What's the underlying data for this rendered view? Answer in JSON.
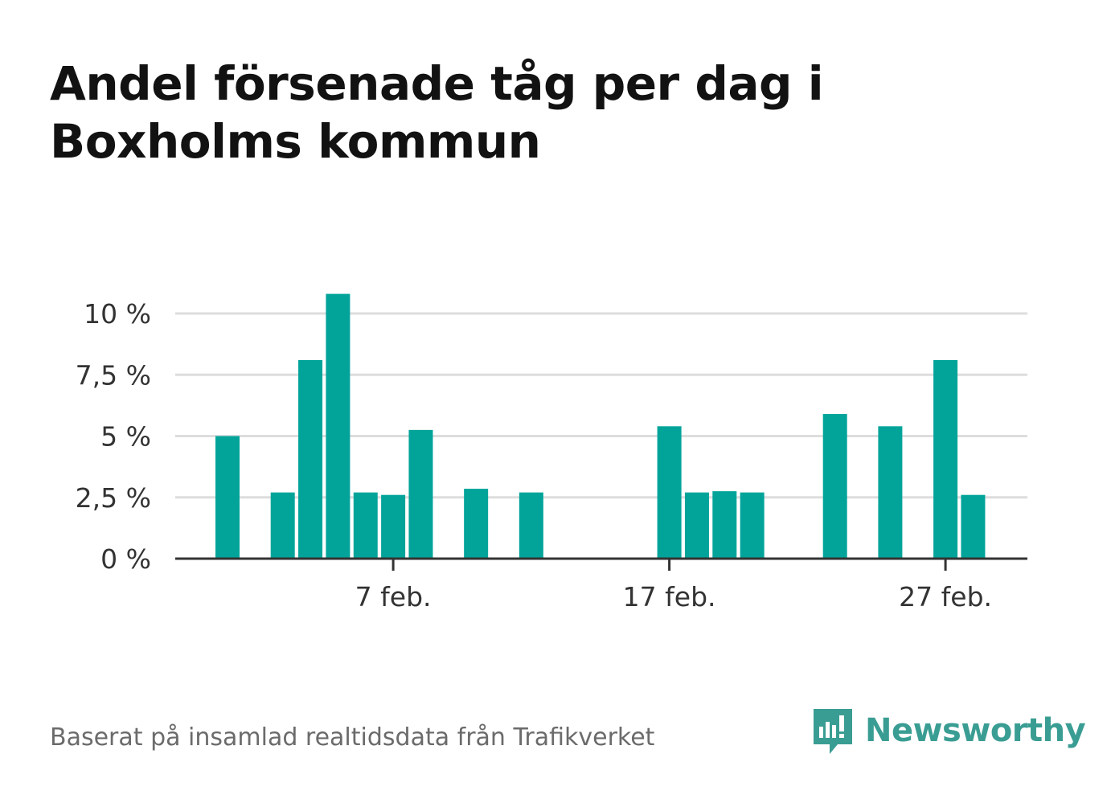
{
  "title": "Andel försenade tåg per dag i Boxholms kommun",
  "source": "Baserat på insamlad realtidsdata från Trafikverket",
  "brand": {
    "name": "Newsworthy",
    "icon": "newsworthy-logo-icon",
    "color": "#3a9d93"
  },
  "colors": {
    "bar": "#02a49a",
    "grid": "#dddddd",
    "axis": "#333333"
  },
  "chart_data": {
    "type": "bar",
    "title": "Andel försenade tåg per dag i Boxholms kommun",
    "xlabel": "",
    "ylabel": "",
    "ylim": [
      0,
      10
    ],
    "yticks": [
      0,
      2.5,
      5,
      7.5,
      10
    ],
    "ytick_labels": [
      "0 %",
      "2,5 %",
      "5 %",
      "7,5 %",
      "10 %"
    ],
    "xtick_labels": [
      "7 feb.",
      "17 feb.",
      "27 feb."
    ],
    "xtick_dates": [
      "2024-02-07",
      "2024-02-17",
      "2024-02-27"
    ],
    "grid": true,
    "categories": [
      "2024-02-01",
      "2024-02-02",
      "2024-02-03",
      "2024-02-04",
      "2024-02-05",
      "2024-02-06",
      "2024-02-07",
      "2024-02-08",
      "2024-02-09",
      "2024-02-10",
      "2024-02-11",
      "2024-02-12",
      "2024-02-13",
      "2024-02-14",
      "2024-02-15",
      "2024-02-16",
      "2024-02-17",
      "2024-02-18",
      "2024-02-19",
      "2024-02-20",
      "2024-02-21",
      "2024-02-22",
      "2024-02-23",
      "2024-02-24",
      "2024-02-25",
      "2024-02-26",
      "2024-02-27",
      "2024-02-28",
      "2024-02-29"
    ],
    "values": [
      5.0,
      0,
      2.7,
      8.1,
      10.8,
      2.7,
      2.6,
      5.25,
      0,
      2.85,
      0,
      2.7,
      0,
      0,
      0,
      0,
      5.4,
      2.7,
      2.75,
      2.7,
      0,
      0,
      5.9,
      0,
      5.4,
      0,
      8.1,
      2.6,
      0
    ]
  }
}
